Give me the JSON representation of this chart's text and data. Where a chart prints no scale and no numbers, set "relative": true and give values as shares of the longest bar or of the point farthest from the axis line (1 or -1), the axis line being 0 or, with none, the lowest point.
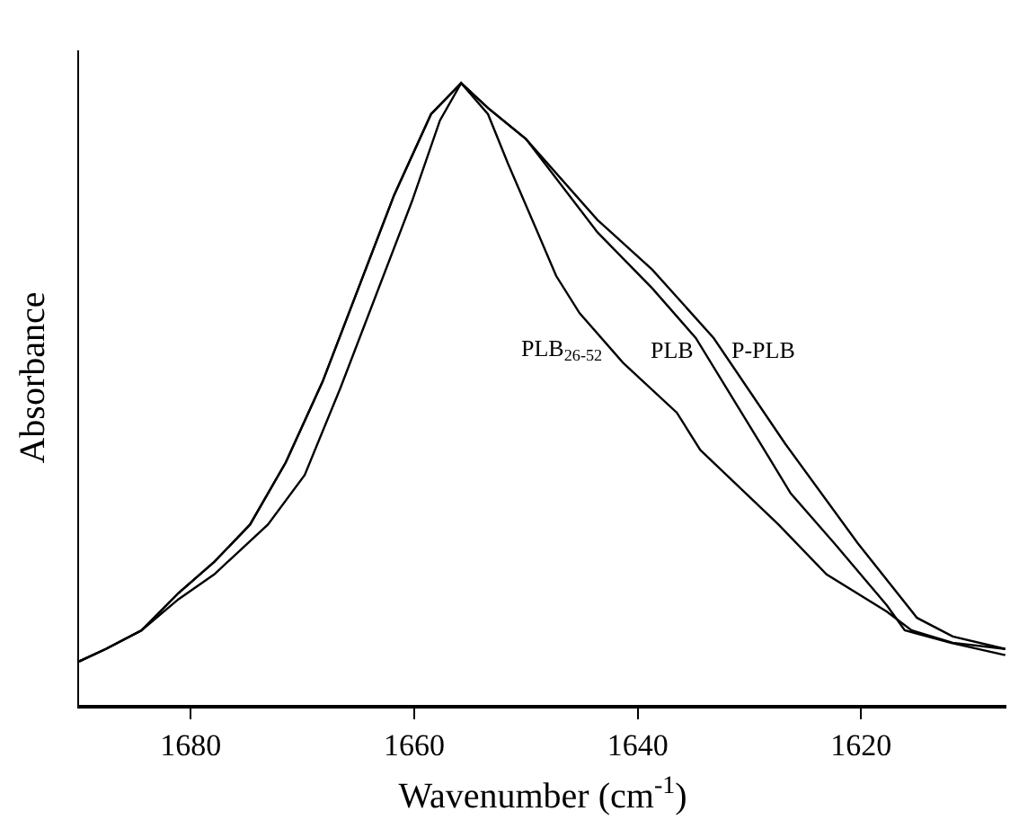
{
  "chart_data": {
    "type": "line",
    "xlabel": "Wavenumber (cm$^{-1}$)",
    "ylabel": "Absorbance",
    "relative": true,
    "xlim": [
      1690,
      1607
    ],
    "xticks": [
      1680,
      1660,
      1640,
      1620
    ],
    "tick_labels": "x",
    "grid": false,
    "legend": false,
    "marker": "none",
    "line_style": "solid",
    "series": [
      {
        "name": "PLB$_{26-52}$",
        "color": "#000000",
        "x": [
          1690,
          1687.6,
          1684.4,
          1681.1,
          1677.9,
          1673.1,
          1669.8,
          1666.6,
          1663.4,
          1660.2,
          1657.7,
          1655.8,
          1653.4,
          1651.6,
          1649.2,
          1647.3,
          1645.2,
          1641.3,
          1636.5,
          1634.4,
          1627.4,
          1623.1,
          1617.7,
          1615.5,
          1611.8,
          1607.1
        ],
        "values": [
          0.07,
          0.09,
          0.12,
          0.17,
          0.21,
          0.29,
          0.37,
          0.51,
          0.66,
          0.81,
          0.94,
          1.0,
          0.95,
          0.87,
          0.77,
          0.69,
          0.63,
          0.55,
          0.47,
          0.41,
          0.29,
          0.21,
          0.15,
          0.12,
          0.1,
          0.09
        ]
      },
      {
        "name": "PLB",
        "color": "#000000",
        "x": [
          1690,
          1687.6,
          1684.4,
          1681.1,
          1677.9,
          1674.7,
          1671.5,
          1668.2,
          1665.0,
          1661.8,
          1658.5,
          1655.8,
          1653.4,
          1650.0,
          1643.6,
          1638.7,
          1634.8,
          1629.0,
          1626.3,
          1622.4,
          1617.7,
          1616.1,
          1612.0,
          1607.1
        ],
        "values": [
          0.07,
          0.09,
          0.12,
          0.18,
          0.23,
          0.29,
          0.39,
          0.52,
          0.67,
          0.82,
          0.95,
          1.0,
          0.96,
          0.91,
          0.76,
          0.67,
          0.59,
          0.42,
          0.34,
          0.26,
          0.16,
          0.12,
          0.1,
          0.08
        ]
      },
      {
        "name": "P-PLB",
        "color": "#000000",
        "x": [
          1690,
          1687.6,
          1684.4,
          1681.1,
          1677.9,
          1674.7,
          1671.5,
          1668.2,
          1665.0,
          1661.8,
          1658.5,
          1655.8,
          1653.4,
          1650.0,
          1643.6,
          1638.7,
          1633.2,
          1626.8,
          1620.3,
          1615.0,
          1611.8,
          1607.1
        ],
        "values": [
          0.07,
          0.09,
          0.12,
          0.18,
          0.23,
          0.29,
          0.39,
          0.52,
          0.67,
          0.82,
          0.95,
          1.0,
          0.96,
          0.91,
          0.78,
          0.7,
          0.59,
          0.42,
          0.26,
          0.14,
          0.11,
          0.09
        ]
      }
    ]
  }
}
